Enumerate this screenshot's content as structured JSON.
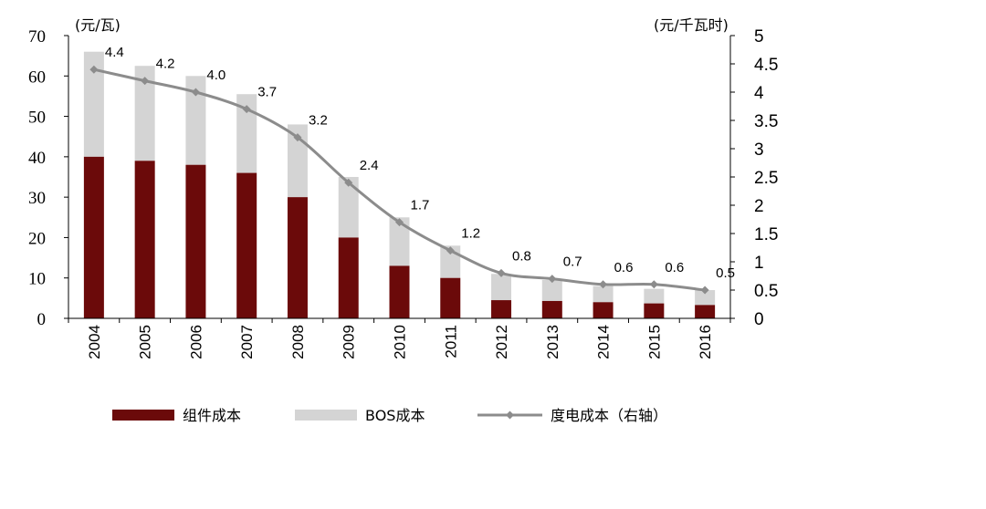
{
  "chart_data": {
    "type": "bar",
    "categories": [
      "2004",
      "2005",
      "2006",
      "2007",
      "2008",
      "2009",
      "2010",
      "2011",
      "2012",
      "2013",
      "2014",
      "2015",
      "2016"
    ],
    "series": [
      {
        "name": "组件成本",
        "type": "bar-stacked",
        "axis": "left",
        "color": "#6b0a0a",
        "values": [
          40,
          39,
          38,
          36,
          30,
          20,
          13,
          10,
          4.5,
          4.3,
          4,
          3.7,
          3.3
        ]
      },
      {
        "name": "BOS成本",
        "type": "bar-stacked",
        "axis": "left",
        "color": "#d4d4d4",
        "values": [
          26,
          23.5,
          22,
          19.5,
          18,
          15,
          12,
          8,
          6.5,
          5.2,
          4,
          3.6,
          3.7
        ]
      },
      {
        "name": "度电成本（右轴）",
        "type": "line",
        "axis": "right",
        "color": "#8c8c8c",
        "values": [
          4.4,
          4.2,
          4.0,
          3.7,
          3.2,
          2.4,
          1.7,
          1.2,
          0.8,
          0.7,
          0.6,
          0.6,
          0.5
        ],
        "value_labels": [
          "4.4",
          "4.2",
          "4.0",
          "3.7",
          "3.2",
          "2.4",
          "1.7",
          "1.2",
          "0.8",
          "0.7",
          "0.6",
          "0.6",
          "0.5"
        ]
      }
    ],
    "y_left": {
      "label": "(元/瓦)",
      "ylim": [
        0,
        70
      ],
      "ticks": [
        "0",
        "10",
        "20",
        "30",
        "40",
        "50",
        "60",
        "70"
      ]
    },
    "y_right": {
      "label": "(元/千瓦时)",
      "ylim": [
        0,
        5
      ],
      "ticks": [
        "0",
        "0.5",
        "1",
        "1.5",
        "2",
        "2.5",
        "3",
        "3.5",
        "4",
        "4.5",
        "5"
      ]
    },
    "legend": [
      "组件成本",
      "BOS成本",
      "度电成本（右轴）"
    ],
    "grid": false,
    "legend_position": "bottom"
  }
}
